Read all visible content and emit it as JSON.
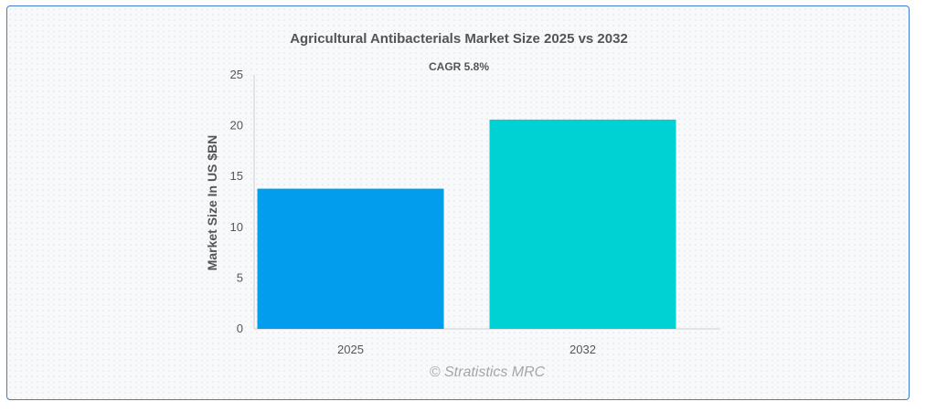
{
  "chart_data": {
    "type": "bar",
    "title": "Agricultural Antibacterials Market Size 2025 vs 2032",
    "subtitle": "CAGR 5.8%",
    "xlabel": "",
    "ylabel": "Market Size In US $BN",
    "categories": [
      "2025",
      "2032"
    ],
    "values": [
      13.8,
      20.6
    ],
    "ylim": [
      0,
      25
    ],
    "yticks": [
      "0",
      "5",
      "10",
      "15",
      "20",
      "25"
    ],
    "grid": false,
    "legend": "none",
    "colors": [
      "#039ded",
      "#00d2d3"
    ]
  },
  "watermark": "© Stratistics MRC",
  "colors": {
    "border": "#3f7bd1",
    "text": "#555555",
    "axis": "#d0d0d0"
  }
}
